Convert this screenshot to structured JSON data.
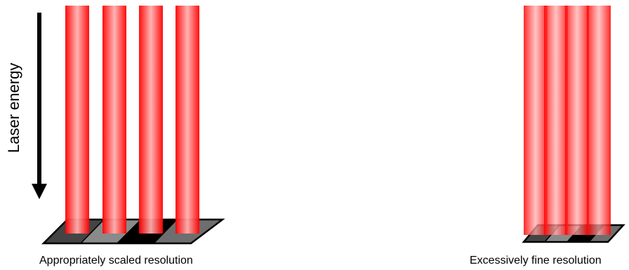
{
  "axis_label": "Laser energy",
  "captions": {
    "appropriate": "Appropriately scaled resolution",
    "fine": "Excessively fine resolution"
  },
  "colors": {
    "beam_edge": "#ff0000",
    "beam_center": "#ffb0b0",
    "arrow": "#000000",
    "plate_fill_shades": [
      "#444444",
      "#8a8a8a",
      "#000000",
      "#6e6e6e"
    ],
    "plate_border": "#000000"
  },
  "panels": [
    {
      "id": "appropriate",
      "beam_count": 4,
      "pixel_count": 4,
      "pixel_shades": [
        "#444444",
        "#8a8a8a",
        "#000000",
        "#6e6e6e"
      ]
    },
    {
      "id": "fine",
      "beam_count": 4,
      "pixel_count": 4,
      "pixel_shades": [
        "#444444",
        "#8a8a8a",
        "#000000",
        "#6e6e6e"
      ]
    }
  ]
}
